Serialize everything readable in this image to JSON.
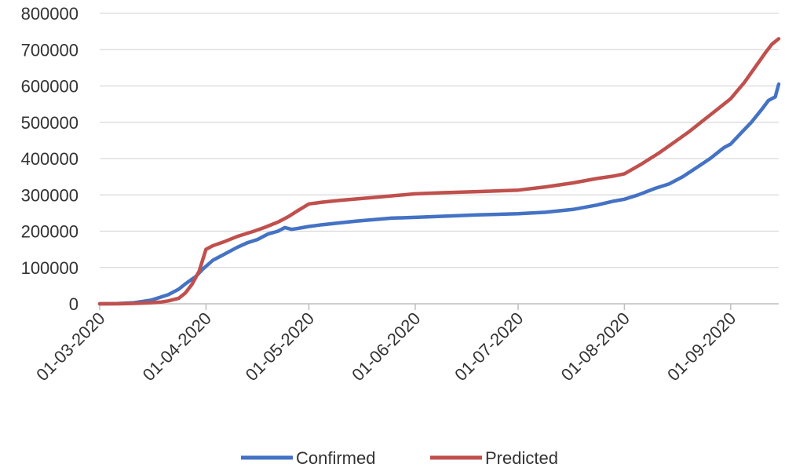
{
  "chart_data": {
    "type": "line",
    "title": "",
    "xlabel": "",
    "ylabel": "",
    "x_tick_labels": [
      "01-03-2020",
      "01-04-2020",
      "01-05-2020",
      "01-06-2020",
      "01-07-2020",
      "01-08-2020",
      "01-09-2020"
    ],
    "x_tick_days": [
      0,
      31,
      61,
      92,
      122,
      153,
      184
    ],
    "x_range_days": [
      0,
      198
    ],
    "ylim": [
      0,
      800000
    ],
    "y_ticks": [
      0,
      100000,
      200000,
      300000,
      400000,
      500000,
      600000,
      700000,
      800000
    ],
    "y_tick_labels": [
      "0",
      "100000",
      "200000",
      "300000",
      "400000",
      "500000",
      "600000",
      "700000",
      "800000"
    ],
    "grid": true,
    "legend_position": "bottom",
    "series": [
      {
        "name": "Confirmed",
        "color": "#4472C4",
        "points": [
          [
            0,
            0
          ],
          [
            5,
            500
          ],
          [
            10,
            3000
          ],
          [
            15,
            10000
          ],
          [
            20,
            25000
          ],
          [
            23,
            40000
          ],
          [
            25,
            55000
          ],
          [
            28,
            75000
          ],
          [
            30,
            95000
          ],
          [
            33,
            120000
          ],
          [
            36,
            135000
          ],
          [
            40,
            155000
          ],
          [
            43,
            168000
          ],
          [
            46,
            177000
          ],
          [
            49,
            192000
          ],
          [
            52,
            200000
          ],
          [
            54,
            210000
          ],
          [
            56,
            205000
          ],
          [
            58,
            208000
          ],
          [
            61,
            213000
          ],
          [
            65,
            218000
          ],
          [
            70,
            223000
          ],
          [
            75,
            228000
          ],
          [
            80,
            232000
          ],
          [
            85,
            236000
          ],
          [
            92,
            238000
          ],
          [
            100,
            241000
          ],
          [
            110,
            245000
          ],
          [
            122,
            248000
          ],
          [
            130,
            252000
          ],
          [
            138,
            260000
          ],
          [
            145,
            272000
          ],
          [
            150,
            283000
          ],
          [
            153,
            288000
          ],
          [
            157,
            300000
          ],
          [
            162,
            318000
          ],
          [
            166,
            330000
          ],
          [
            170,
            350000
          ],
          [
            174,
            375000
          ],
          [
            178,
            400000
          ],
          [
            182,
            430000
          ],
          [
            184,
            440000
          ],
          [
            187,
            470000
          ],
          [
            190,
            500000
          ],
          [
            193,
            535000
          ],
          [
            195,
            560000
          ],
          [
            197,
            570000
          ],
          [
            198,
            605000
          ]
        ]
      },
      {
        "name": "Predicted",
        "color": "#C0504D",
        "points": [
          [
            0,
            0
          ],
          [
            5,
            0
          ],
          [
            10,
            1000
          ],
          [
            15,
            3000
          ],
          [
            18,
            5000
          ],
          [
            20,
            8000
          ],
          [
            23,
            15000
          ],
          [
            25,
            30000
          ],
          [
            27,
            55000
          ],
          [
            29,
            90000
          ],
          [
            31,
            150000
          ],
          [
            33,
            160000
          ],
          [
            36,
            170000
          ],
          [
            40,
            185000
          ],
          [
            45,
            200000
          ],
          [
            48,
            210000
          ],
          [
            52,
            225000
          ],
          [
            55,
            240000
          ],
          [
            58,
            258000
          ],
          [
            61,
            275000
          ],
          [
            65,
            280000
          ],
          [
            70,
            285000
          ],
          [
            80,
            293000
          ],
          [
            92,
            303000
          ],
          [
            100,
            306000
          ],
          [
            110,
            309000
          ],
          [
            122,
            313000
          ],
          [
            130,
            322000
          ],
          [
            138,
            333000
          ],
          [
            145,
            345000
          ],
          [
            150,
            352000
          ],
          [
            153,
            358000
          ],
          [
            158,
            385000
          ],
          [
            163,
            415000
          ],
          [
            168,
            448000
          ],
          [
            172,
            475000
          ],
          [
            176,
            505000
          ],
          [
            180,
            535000
          ],
          [
            184,
            565000
          ],
          [
            188,
            610000
          ],
          [
            191,
            650000
          ],
          [
            194,
            690000
          ],
          [
            196,
            715000
          ],
          [
            198,
            730000
          ]
        ]
      }
    ]
  }
}
